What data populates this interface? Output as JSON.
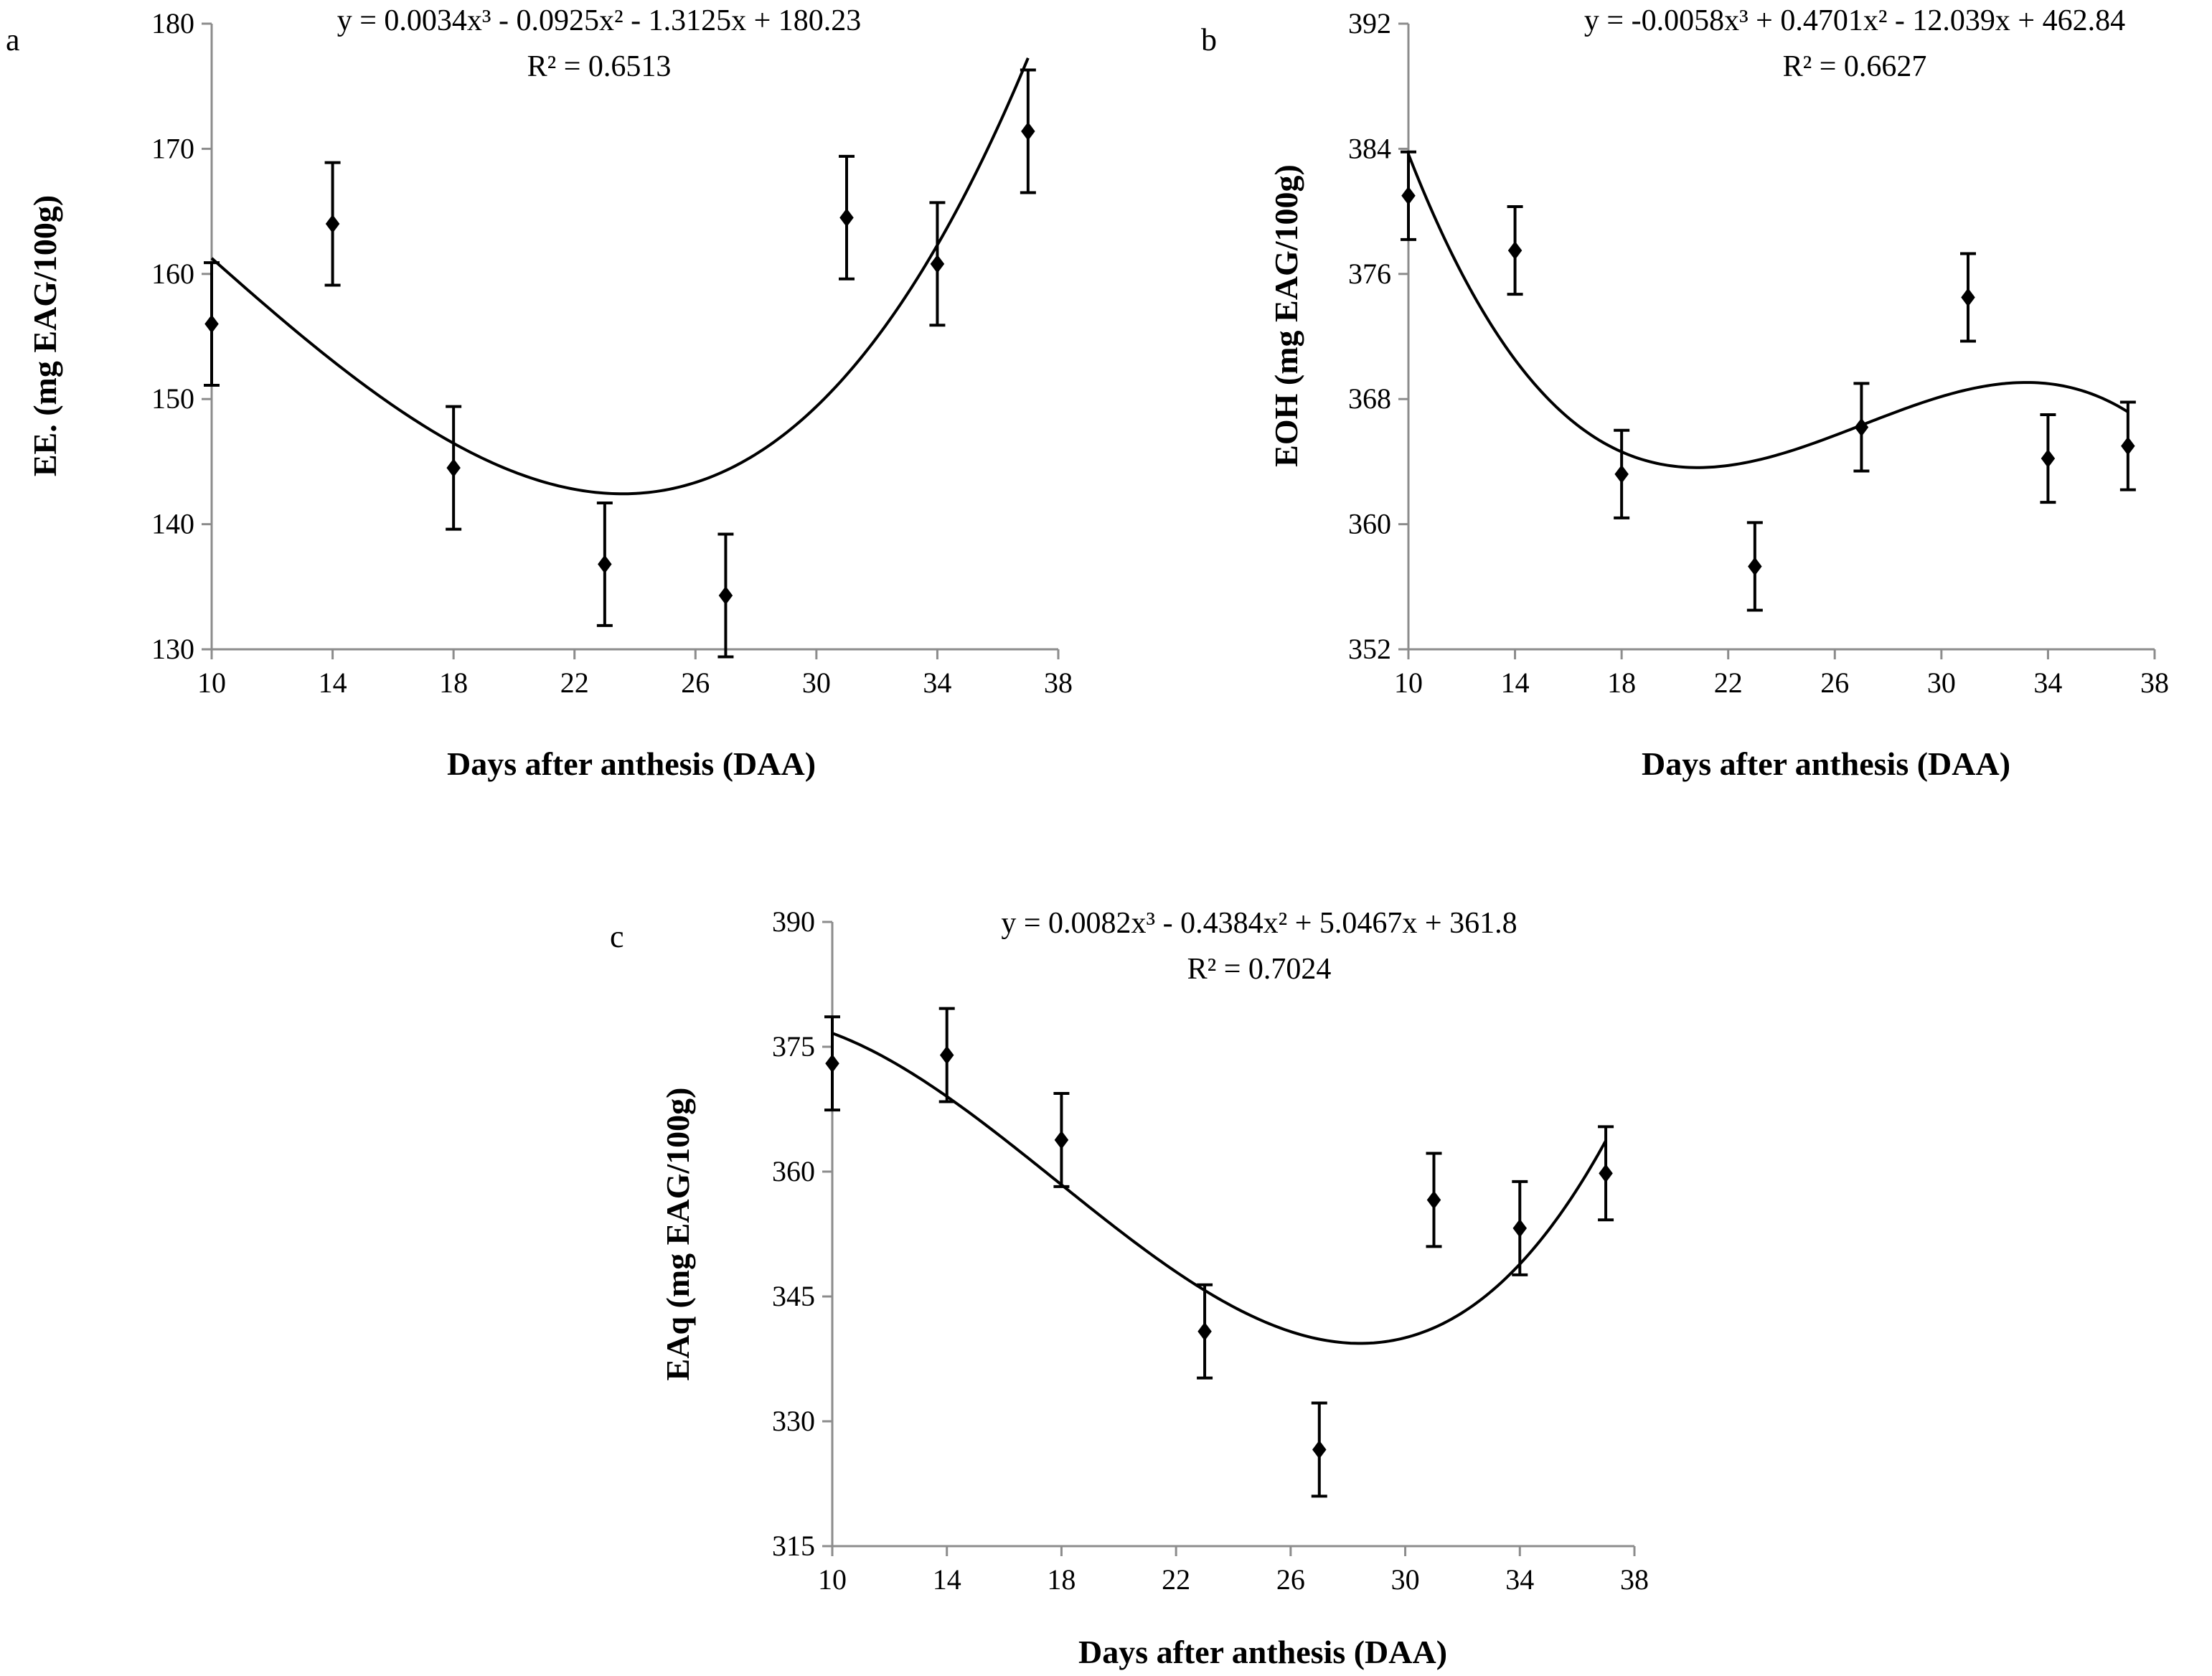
{
  "chart_data": [
    {
      "panel": "a",
      "type": "scatter",
      "equation": "y = 0.0034x³ - 0.0925x² - 1.3125x + 180.23",
      "r_squared": "R² = 0.6513",
      "xlabel": "Days after anthesis (DAA)",
      "ylabel": "EE. (mg  EAG/100g)",
      "xlim": [
        10,
        38
      ],
      "ylim": [
        130,
        180
      ],
      "xticks": [
        10,
        14,
        18,
        22,
        26,
        30,
        34,
        38
      ],
      "yticks": [
        130,
        140,
        150,
        160,
        170,
        180
      ],
      "trend_coefficients": [
        0.0034,
        -0.0925,
        -1.3125,
        180.23
      ],
      "points": [
        {
          "x": 10,
          "y": 156.0,
          "err": 4.9
        },
        {
          "x": 14,
          "y": 164.0,
          "err": 4.9
        },
        {
          "x": 18,
          "y": 144.5,
          "err": 4.9
        },
        {
          "x": 23,
          "y": 136.8,
          "err": 4.9
        },
        {
          "x": 27,
          "y": 134.3,
          "err": 4.9
        },
        {
          "x": 31,
          "y": 164.5,
          "err": 4.9
        },
        {
          "x": 34,
          "y": 160.8,
          "err": 4.9
        },
        {
          "x": 37,
          "y": 171.4,
          "err": 4.9
        }
      ],
      "colors": {
        "marker": "#000000",
        "axis": "#8c8c8c",
        "line": "#000000"
      }
    },
    {
      "panel": "b",
      "type": "scatter",
      "equation": "y = -0.0058x³ + 0.4701x² - 12.039x + 462.84",
      "r_squared": "R² = 0.6627",
      "xlabel": "Days after anthesis (DAA)",
      "ylabel": "EOH (mg  EAG/100g)",
      "xlim": [
        10,
        38
      ],
      "ylim": [
        352,
        392
      ],
      "xticks": [
        10,
        14,
        18,
        22,
        26,
        30,
        34,
        38
      ],
      "yticks": [
        352,
        360,
        368,
        376,
        384,
        392
      ],
      "trend_coefficients": [
        -0.0058,
        0.4701,
        -12.039,
        462.84
      ],
      "points": [
        {
          "x": 10,
          "y": 381.0,
          "err": 2.8
        },
        {
          "x": 14,
          "y": 377.5,
          "err": 2.8
        },
        {
          "x": 18,
          "y": 363.2,
          "err": 2.8
        },
        {
          "x": 23,
          "y": 357.3,
          "err": 2.8
        },
        {
          "x": 27,
          "y": 366.2,
          "err": 2.8
        },
        {
          "x": 31,
          "y": 374.5,
          "err": 2.8
        },
        {
          "x": 34,
          "y": 364.2,
          "err": 2.8
        },
        {
          "x": 37,
          "y": 365.0,
          "err": 2.8
        }
      ],
      "colors": {
        "marker": "#000000",
        "axis": "#8c8c8c",
        "line": "#000000"
      }
    },
    {
      "panel": "c",
      "type": "scatter",
      "equation": "y = 0.0082x³ - 0.4384x² + 5.0467x + 361.8",
      "r_squared": "R² = 0.7024",
      "xlabel": "Days after anthesis (DAA)",
      "ylabel": "EAq (mg  EAG/100g)",
      "xlim": [
        10,
        38
      ],
      "ylim": [
        315,
        390
      ],
      "xticks": [
        10,
        14,
        18,
        22,
        26,
        30,
        34,
        38
      ],
      "yticks": [
        315,
        330,
        345,
        360,
        375,
        390
      ],
      "trend_coefficients": [
        0.0082,
        -0.4384,
        5.0467,
        361.8
      ],
      "points": [
        {
          "x": 10,
          "y": 373.0,
          "err": 5.6
        },
        {
          "x": 14,
          "y": 374.0,
          "err": 5.6
        },
        {
          "x": 18,
          "y": 363.8,
          "err": 5.6
        },
        {
          "x": 23,
          "y": 340.8,
          "err": 5.6
        },
        {
          "x": 27,
          "y": 326.6,
          "err": 5.6
        },
        {
          "x": 31,
          "y": 356.6,
          "err": 5.6
        },
        {
          "x": 34,
          "y": 353.2,
          "err": 5.6
        },
        {
          "x": 37,
          "y": 359.8,
          "err": 5.6
        }
      ],
      "colors": {
        "marker": "#000000",
        "axis": "#8c8c8c",
        "line": "#000000"
      }
    }
  ]
}
